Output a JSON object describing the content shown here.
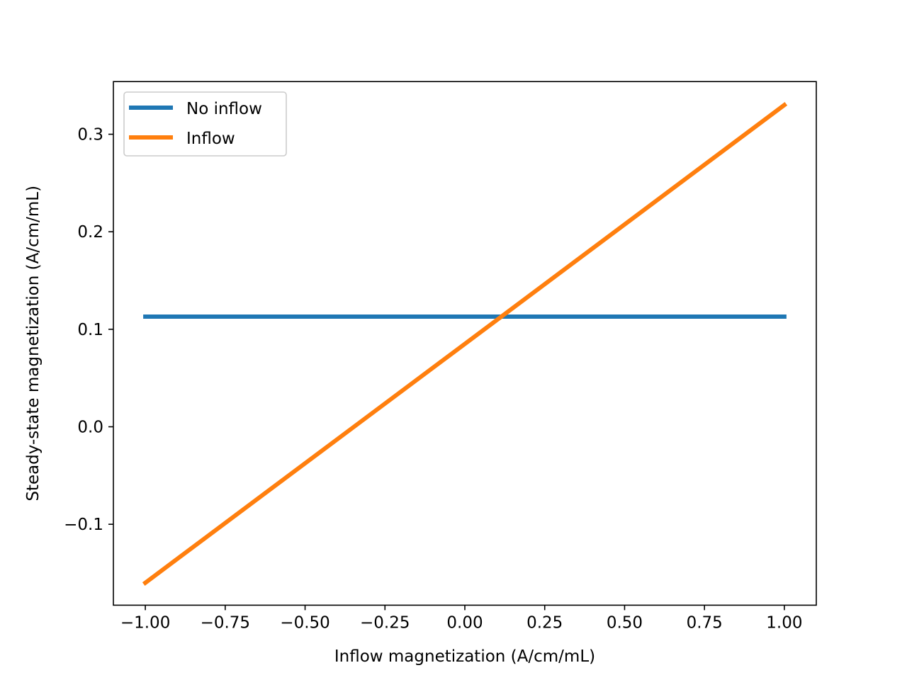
{
  "chart_data": {
    "type": "line",
    "title": "",
    "xlabel": "Inflow magnetization (A/cm/mL)",
    "ylabel": "Steady-state magnetization (A/cm/mL)",
    "xlim": [
      -1.1,
      1.1
    ],
    "ylim": [
      -0.183,
      0.354
    ],
    "x_ticks": [
      -1.0,
      -0.75,
      -0.5,
      -0.25,
      0.0,
      0.25,
      0.5,
      0.75,
      1.0
    ],
    "x_tick_labels": [
      "−1.00",
      "−0.75",
      "−0.50",
      "−0.25",
      "0.00",
      "0.25",
      "0.50",
      "0.75",
      "1.00"
    ],
    "y_ticks": [
      -0.1,
      0.0,
      0.1,
      0.2,
      0.3
    ],
    "y_tick_labels": [
      "−0.1",
      "0.0",
      "0.1",
      "0.2",
      "0.3"
    ],
    "grid": false,
    "legend_position": "top-left",
    "series": [
      {
        "name": "No inflow",
        "color": "#1f77b4",
        "x": [
          -1.0,
          1.0
        ],
        "y": [
          0.113,
          0.113
        ]
      },
      {
        "name": "Inflow",
        "color": "#ff7f0e",
        "x": [
          -1.0,
          1.0
        ],
        "y": [
          -0.16,
          0.33
        ]
      }
    ]
  }
}
